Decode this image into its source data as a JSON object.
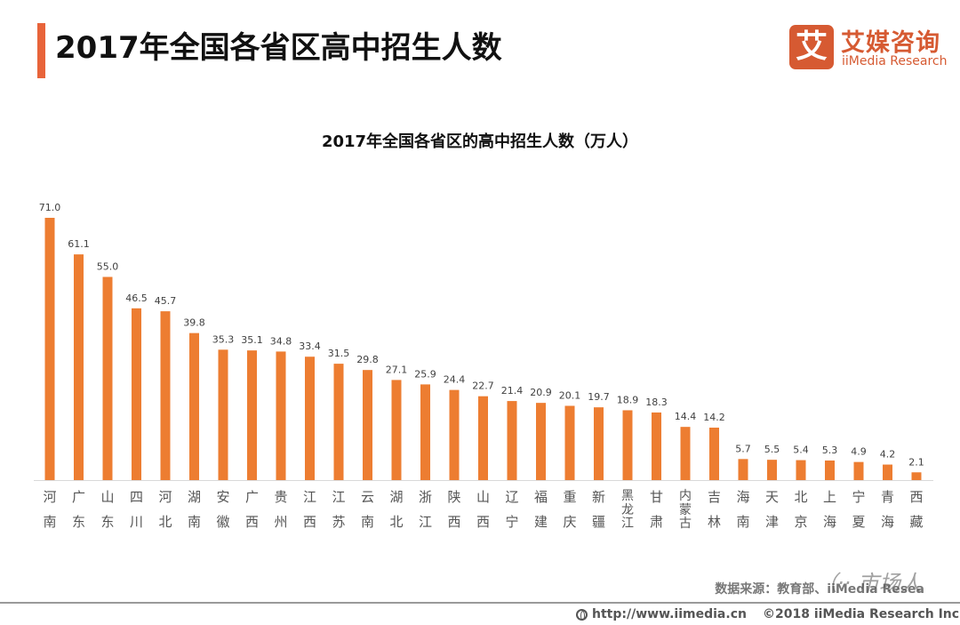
{
  "header": {
    "title": "2017年全国各省区高中招生人数",
    "accent_color": "#e8643a"
  },
  "logo": {
    "glyph": "艾",
    "name_cn": "艾媒咨询",
    "name_en": "iiMedia Research",
    "color": "#d65a32"
  },
  "chart_data": {
    "type": "bar",
    "title": "2017年全国各省区的高中招生人数（万人）",
    "xlabel": "",
    "ylabel": "",
    "unit": "万人",
    "ylim": [
      0,
      71
    ],
    "grid": false,
    "legend": "none",
    "bar_color": "#ed7d31",
    "categories": [
      "河南",
      "广东",
      "山东",
      "四川",
      "河北",
      "湖南",
      "安徽",
      "广西",
      "贵州",
      "江西",
      "江苏",
      "云南",
      "湖北",
      "浙江",
      "陕西",
      "山西",
      "辽宁",
      "福建",
      "重庆",
      "新疆",
      "黑龙江",
      "甘肃",
      "内蒙古",
      "吉林",
      "海南",
      "天津",
      "北京",
      "上海",
      "宁夏",
      "青海",
      "西藏"
    ],
    "values": [
      71.0,
      61.1,
      55.0,
      46.5,
      45.7,
      39.8,
      35.3,
      35.1,
      34.8,
      33.4,
      31.5,
      29.8,
      27.1,
      25.9,
      24.4,
      22.7,
      21.4,
      20.9,
      20.1,
      19.7,
      18.9,
      18.3,
      14.4,
      14.2,
      5.7,
      5.5,
      5.4,
      5.3,
      4.9,
      4.2,
      2.1
    ],
    "value_labels": [
      "71.0",
      "61.1",
      "55.0",
      "46.5",
      "45.7",
      "39.8",
      "35.3",
      "35.1",
      "34.8",
      "33.4",
      "31.5",
      "29.8",
      "27.1",
      "25.9",
      "24.4",
      "22.7",
      "21.4",
      "20.9",
      "20.1",
      "19.7",
      "18.9",
      "18.3",
      "14.4",
      "14.2",
      "5.7",
      "5.5",
      "5.4",
      "5.3",
      "4.9",
      "4.2",
      "2.1"
    ]
  },
  "source": {
    "text": "数据来源：教育部、iiMedia Resea",
    "watermark": "（·· 市场人"
  },
  "footer": {
    "url_icon": "globe-icon",
    "url": "http://www.iimedia.cn",
    "copyright": "©2018 iiMedia Research Inc"
  }
}
